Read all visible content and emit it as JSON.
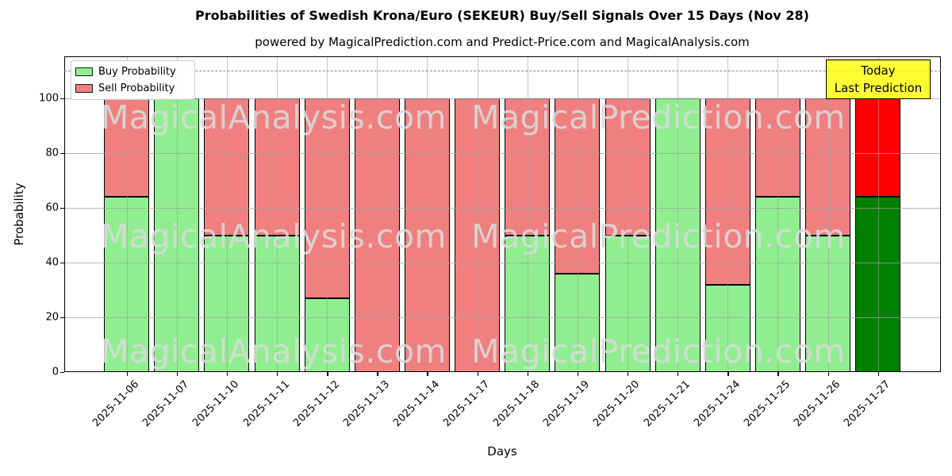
{
  "title": "Probabilities of Swedish Krona/Euro (SEKEUR) Buy/Sell Signals Over 15 Days (Nov 28)",
  "subtitle": "powered by MagicalPrediction.com and Predict-Price.com and MagicalAnalysis.com",
  "axes": {
    "xlabel": "Days",
    "ylabel": "Probability"
  },
  "legend": {
    "items": [
      {
        "label": "Buy Probability",
        "color": "#90ee90"
      },
      {
        "label": "Sell Probability",
        "color": "#f08080"
      }
    ]
  },
  "annotation": {
    "line1": "Today",
    "line2": "Last Prediction",
    "bg_color": "#ffff00",
    "border_color": "#000000"
  },
  "watermarks": {
    "left": "MagicalAnalysis.com",
    "right": "MagicalPrediction.com"
  },
  "chart_data": {
    "type": "bar",
    "stacked": true,
    "title": "Probabilities of Swedish Krona/Euro (SEKEUR) Buy/Sell Signals Over 15 Days (Nov 28)",
    "xlabel": "Days",
    "ylabel": "Probability",
    "categories": [
      "2025-11-06",
      "2025-11-07",
      "2025-11-10",
      "2025-11-11",
      "2025-11-12",
      "2025-11-13",
      "2025-11-14",
      "2025-11-17",
      "2025-11-18",
      "2025-11-19",
      "2025-11-20",
      "2025-11-21",
      "2025-11-24",
      "2025-11-25",
      "2025-11-26",
      "2025-11-27"
    ],
    "series": [
      {
        "name": "Buy Probability",
        "color": "#90ee90",
        "values": [
          64,
          100,
          50,
          50,
          27,
          0,
          0,
          0,
          50,
          36,
          50,
          100,
          32,
          64,
          50,
          64
        ]
      },
      {
        "name": "Sell Probability",
        "color": "#f08080",
        "values": [
          36,
          0,
          50,
          50,
          73,
          100,
          100,
          100,
          50,
          64,
          50,
          0,
          68,
          36,
          50,
          36
        ]
      }
    ],
    "today_bar": {
      "category": "2025-11-27",
      "index": 15,
      "buy_color": "#008000",
      "sell_color": "#ff0000"
    },
    "ylim": [
      0,
      115.4
    ],
    "yticks": [
      0,
      20,
      40,
      60,
      80,
      100
    ],
    "dashed_line_y": 110,
    "grid": true,
    "bar_edge_color": "#000000",
    "legend_position": "upper left"
  }
}
